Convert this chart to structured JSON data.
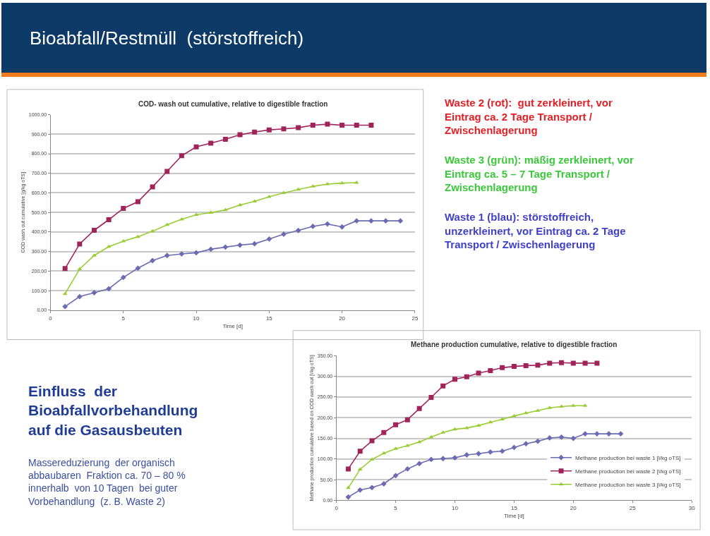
{
  "chart_data": [
    {
      "type": "line",
      "title": "COD- wash out cumulative, relative to digestible fraction",
      "xlabel": "Time [d]",
      "ylabel": "COD wash out cumulative [g/kg oTS]",
      "xlim": [
        0,
        25
      ],
      "xticks": [
        0,
        5,
        10,
        15,
        20,
        25
      ],
      "ylim": [
        0,
        1000
      ],
      "yticks": [
        {
          "value": 0,
          "label": "0.00"
        },
        {
          "value": 100,
          "label": "100.00"
        },
        {
          "value": 200,
          "label": "200.00"
        },
        {
          "value": 300,
          "label": "300.00"
        },
        {
          "value": 400,
          "label": "400.00"
        },
        {
          "value": 500,
          "label": "500.00"
        },
        {
          "value": 600,
          "label": "600.00"
        },
        {
          "value": 700,
          "label": "700.00"
        },
        {
          "value": 800,
          "label": "800.00"
        },
        {
          "value": 900,
          "label": "900.00"
        },
        {
          "value": 1000,
          "label": "1000.00"
        }
      ],
      "grid": "y",
      "legend": false,
      "series": [
        {
          "color": "#6b6bb3",
          "marker": "diamond",
          "x": [
            1,
            2,
            3,
            4,
            5,
            6,
            7,
            8,
            9,
            10,
            11,
            12,
            13,
            14,
            15,
            16,
            17,
            18,
            19,
            20,
            21,
            22,
            23,
            24
          ],
          "values": [
            19,
            70,
            90,
            110,
            168,
            215,
            254,
            280,
            288,
            294,
            312,
            323,
            333,
            340,
            364,
            389,
            408,
            429,
            441,
            426,
            457,
            457,
            457,
            457
          ]
        },
        {
          "color": "#a0245a",
          "marker": "square",
          "x": [
            1,
            2,
            3,
            4,
            5,
            6,
            7,
            8,
            9,
            10,
            11,
            12,
            13,
            14,
            15,
            16,
            17,
            18,
            19,
            20,
            21,
            22
          ],
          "values": [
            213,
            339,
            409,
            463,
            521,
            555,
            631,
            710,
            790,
            835,
            854,
            874,
            897,
            911,
            922,
            927,
            933,
            946,
            951,
            946,
            946,
            946
          ]
        },
        {
          "color": "#99cc33",
          "marker": "triangle",
          "x": [
            1,
            2,
            3,
            4,
            5,
            6,
            7,
            8,
            9,
            10,
            11,
            12,
            13,
            14,
            15,
            16,
            17,
            18,
            19,
            20,
            21
          ],
          "values": [
            84,
            211,
            280,
            325,
            353,
            376,
            404,
            437,
            465,
            488,
            499,
            513,
            538,
            557,
            580,
            600,
            617,
            633,
            645,
            650,
            652
          ]
        }
      ]
    },
    {
      "type": "line",
      "title": "Methane production cumulative, relative to digestible fraction",
      "xlabel": "Time [d]",
      "ylabel": "Methane production cumulative based on COD wash out [l/kg oTS]",
      "xlim": [
        0,
        30
      ],
      "xticks": [
        0,
        5,
        10,
        15,
        20,
        25,
        30
      ],
      "ylim": [
        0,
        350
      ],
      "yticks": [
        {
          "value": 0,
          "label": "0.00"
        },
        {
          "value": 50,
          "label": "50.00"
        },
        {
          "value": 100,
          "label": "100.00"
        },
        {
          "value": 150,
          "label": "150.00"
        },
        {
          "value": 200,
          "label": "200.00"
        },
        {
          "value": 250,
          "label": "250.00"
        },
        {
          "value": 300,
          "label": "300.00"
        },
        {
          "value": 350,
          "label": "350.00"
        }
      ],
      "grid": "y",
      "legend": "bottom right",
      "series": [
        {
          "name": "Methane production bei waste 1 [l/kg oTS]",
          "color": "#6b6bb3",
          "marker": "diamond",
          "x": [
            1,
            2,
            3,
            4,
            5,
            6,
            7,
            8,
            9,
            10,
            11,
            12,
            13,
            14,
            15,
            16,
            17,
            18,
            19,
            20,
            21,
            22,
            23,
            24
          ],
          "values": [
            8,
            25,
            31,
            40,
            60,
            76,
            89,
            99,
            101,
            103,
            110,
            113,
            117,
            119,
            128,
            137,
            143,
            151,
            153,
            150,
            161,
            161,
            161,
            161
          ]
        },
        {
          "name": "Methane production bei waste 2 [l/kg oTS]",
          "color": "#a0245a",
          "marker": "square",
          "x": [
            1,
            2,
            3,
            4,
            5,
            6,
            7,
            8,
            9,
            10,
            11,
            12,
            13,
            14,
            15,
            16,
            17,
            18,
            19,
            20,
            21,
            22
          ],
          "values": [
            76,
            119,
            144,
            164,
            183,
            195,
            222,
            249,
            277,
            293,
            299,
            308,
            314,
            321,
            324,
            326,
            327,
            332,
            333,
            332,
            332,
            332
          ]
        },
        {
          "name": "Methane production bei waste 3 [l/kg oTS]",
          "color": "#99cc33",
          "marker": "triangle",
          "x": [
            1,
            2,
            3,
            4,
            5,
            6,
            7,
            8,
            9,
            10,
            11,
            12,
            13,
            14,
            15,
            16,
            17,
            18,
            19,
            20,
            21
          ],
          "values": [
            30,
            75,
            99,
            114,
            125,
            132,
            141,
            153,
            164,
            172,
            175,
            181,
            189,
            196,
            204,
            211,
            217,
            224,
            227,
            229,
            229
          ]
        }
      ]
    },
    {
      "type": "other",
      "title": "Bioabfall/Restmüll  (störstoffreich)",
      "annotations": [
        "Waste 2 (rot):  gut zerkleinert, vor\nEintrag ca. 2 Tage Transport /\nZwischenlagerung",
        "Waste 3 (grün): mäßig zerkleinert, vor\nEintrag ca. 5 – 7 Tage Transport /\nZwischenlagerung",
        "Waste 1 (blau): störstoffreich,\nunzerkleinert, vor Eintrag ca. 2 Tage\nTransport / Zwischenlagerung",
        "Einfluss  der\nBioabfallvorbehandlung\nauf die Gasausbeuten",
        "Massereduzierung  der organisch\nabbaubaren  Fraktion ca. 70 – 80 %\ninnerhalb  von 10 Tagen  bei guter\nVorbehandlung  (z. B. Waste 2)"
      ],
      "colors": [
        "#e31e24",
        "#3cc83c",
        "#4040c8",
        "#1f3c96",
        "#3a4fa0"
      ]
    }
  ]
}
